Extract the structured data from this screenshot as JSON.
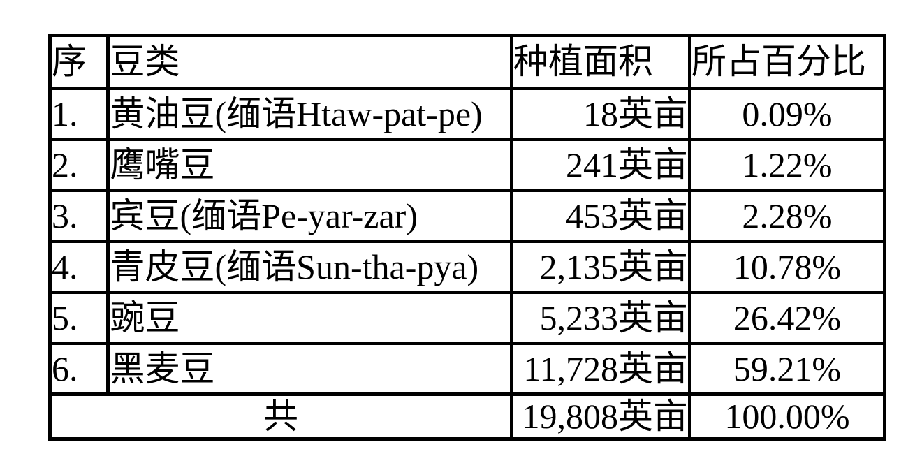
{
  "page": {
    "background": "#ffffff",
    "text_color": "#000000",
    "border_color": "#000000"
  },
  "table": {
    "columns": [
      {
        "key": "no",
        "label": "序"
      },
      {
        "key": "type",
        "label": "豆类"
      },
      {
        "key": "area",
        "label": "种植面积"
      },
      {
        "key": "percent",
        "label": "所占百分比"
      }
    ],
    "rows": [
      {
        "no": "1.",
        "type": "黄油豆(缅语Htaw-pat-pe)",
        "area": "18英亩",
        "percent": "0.09%"
      },
      {
        "no": "2.",
        "type": "鹰嘴豆",
        "area": "241英亩",
        "percent": "1.22%"
      },
      {
        "no": "3.",
        "type": "宾豆(缅语Pe-yar-zar)",
        "area": "453英亩",
        "percent": "2.28%"
      },
      {
        "no": "4.",
        "type": "青皮豆(缅语Sun-tha-pya)",
        "area": "2,135英亩",
        "percent": "10.78%"
      },
      {
        "no": "5.",
        "type": "豌豆",
        "area": "5,233英亩",
        "percent": "26.42%"
      },
      {
        "no": "6.",
        "type": "黑麦豆",
        "area": "11,728英亩",
        "percent": "59.21%"
      }
    ],
    "total_row": {
      "label": "共",
      "area": "19,808英亩",
      "percent": "100.00%"
    }
  }
}
